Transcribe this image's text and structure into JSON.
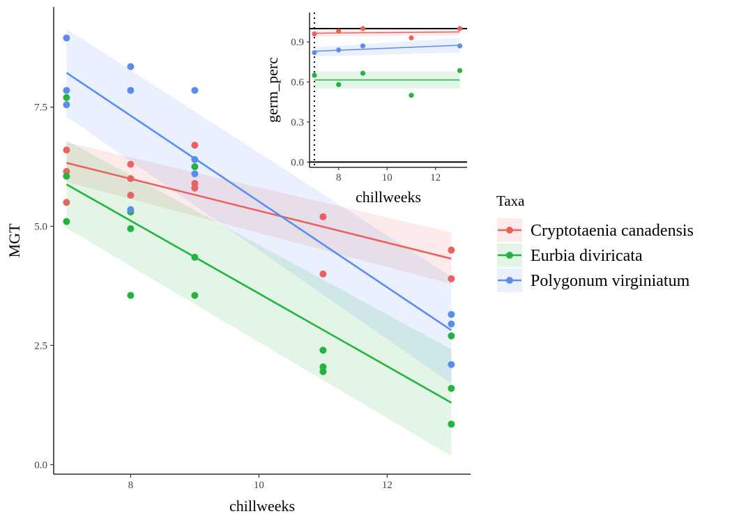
{
  "chart_data": [
    {
      "type": "scatter",
      "id": "main",
      "xlabel": "chillweeks",
      "ylabel": "MGT",
      "xlim": [
        6.8,
        13.3
      ],
      "ylim": [
        -0.2,
        9.6
      ],
      "xticks": [
        8,
        10,
        12
      ],
      "xtick_labels": [
        "8",
        "10",
        "12"
      ],
      "yticks": [
        0,
        2.5,
        5,
        7.5
      ],
      "ytick_labels": [
        "0.0",
        "2.5",
        "5.0",
        "7.5"
      ],
      "grid": false,
      "legend": "right",
      "series": [
        {
          "name": "Cryptotaenia canadensis",
          "color": "#E8635F",
          "points": [
            [
              7,
              6.6
            ],
            [
              7,
              6.15
            ],
            [
              7,
              5.5
            ],
            [
              8,
              6.3
            ],
            [
              8,
              6.0
            ],
            [
              8,
              5.65
            ],
            [
              9,
              6.7
            ],
            [
              9,
              5.9
            ],
            [
              9,
              5.8
            ],
            [
              11,
              5.2
            ],
            [
              11,
              4.0
            ],
            [
              13,
              4.5
            ],
            [
              13,
              3.9
            ]
          ],
          "fit": [
            [
              7,
              6.33
            ],
            [
              13,
              4.32
            ]
          ],
          "band": {
            "x": [
              7,
              13
            ],
            "lower": [
              5.93,
              3.79
            ],
            "upper": [
              6.76,
              4.87
            ]
          }
        },
        {
          "name": "Eurbia diviricata",
          "color": "#22B43C",
          "points": [
            [
              7,
              7.7
            ],
            [
              7,
              6.05
            ],
            [
              7,
              5.1
            ],
            [
              8,
              5.3
            ],
            [
              8,
              4.95
            ],
            [
              8,
              3.55
            ],
            [
              9,
              6.25
            ],
            [
              9,
              4.35
            ],
            [
              9,
              3.55
            ],
            [
              11,
              2.4
            ],
            [
              11,
              2.05
            ],
            [
              11,
              1.95
            ],
            [
              13,
              2.7
            ],
            [
              13,
              1.6
            ],
            [
              13,
              0.85
            ]
          ],
          "fit": [
            [
              7,
              5.88
            ],
            [
              13,
              1.3
            ]
          ],
          "band": {
            "x": [
              7,
              13
            ],
            "lower": [
              4.96,
              0.18
            ],
            "upper": [
              6.8,
              2.42
            ]
          }
        },
        {
          "name": "Polygonum virginiatum",
          "color": "#5A8DEE",
          "points": [
            [
              7,
              8.95
            ],
            [
              7,
              7.85
            ],
            [
              7,
              7.55
            ],
            [
              8,
              8.35
            ],
            [
              8,
              7.85
            ],
            [
              8,
              5.35
            ],
            [
              9,
              7.85
            ],
            [
              9,
              6.4
            ],
            [
              9,
              6.1
            ],
            [
              13,
              3.15
            ],
            [
              13,
              2.95
            ],
            [
              13,
              2.1
            ]
          ],
          "fit": [
            [
              7,
              8.22
            ],
            [
              13,
              2.82
            ]
          ],
          "band": {
            "x": [
              7,
              13
            ],
            "lower": [
              7.3,
              1.7
            ],
            "upper": [
              9.14,
              3.94
            ]
          }
        }
      ]
    },
    {
      "type": "scatter",
      "id": "inset",
      "xlabel": "chillweeks",
      "ylabel": "germ_perc",
      "xlim": [
        6.8,
        13.3
      ],
      "ylim": [
        -0.04,
        1.12
      ],
      "xticks": [
        8,
        10,
        12
      ],
      "xtick_labels": [
        "8",
        "10",
        "12"
      ],
      "yticks": [
        0,
        0.3,
        0.6,
        0.9
      ],
      "ytick_labels": [
        "0.0",
        "0.3",
        "0.6",
        "0.9"
      ],
      "grid": false,
      "hlines": [
        0,
        1
      ],
      "vline_dotted": 7,
      "series": [
        {
          "name": "Cryptotaenia canadensis",
          "color": "#E8635F",
          "points": [
            [
              7,
              0.96
            ],
            [
              8,
              0.98
            ],
            [
              9,
              1.0
            ],
            [
              11,
              0.93
            ],
            [
              13,
              1.0
            ]
          ],
          "fit": [
            [
              7,
              0.965
            ],
            [
              13,
              0.975
            ]
          ],
          "band": {
            "x": [
              7,
              13
            ],
            "lower": [
              0.94,
              0.95
            ],
            "upper": [
              0.99,
              1.0
            ]
          }
        },
        {
          "name": "Eurbia diviricata",
          "color": "#22B43C",
          "points": [
            [
              7,
              0.65
            ],
            [
              8,
              0.58
            ],
            [
              9,
              0.665
            ],
            [
              11,
              0.5
            ],
            [
              13,
              0.685
            ]
          ],
          "fit": [
            [
              7,
              0.615
            ],
            [
              13,
              0.615
            ]
          ],
          "band": {
            "x": [
              7,
              13
            ],
            "lower": [
              0.55,
              0.55
            ],
            "upper": [
              0.68,
              0.68
            ]
          }
        },
        {
          "name": "Polygonum virginiatum",
          "color": "#5A8DEE",
          "points": [
            [
              7,
              0.82
            ],
            [
              8,
              0.84
            ],
            [
              9,
              0.87
            ],
            [
              13,
              0.87
            ]
          ],
          "fit": [
            [
              7,
              0.83
            ],
            [
              13,
              0.875
            ]
          ],
          "band": {
            "x": [
              7,
              13
            ],
            "lower": [
              0.79,
              0.82
            ],
            "upper": [
              0.86,
              0.93
            ]
          }
        }
      ]
    }
  ],
  "legend": {
    "title": "Taxa",
    "items": [
      {
        "label": "Cryptotaenia canadensis",
        "color": "#E8635F"
      },
      {
        "label": "Eurbia diviricata",
        "color": "#22B43C"
      },
      {
        "label": "Polygonum virginiatum",
        "color": "#5A8DEE"
      }
    ]
  }
}
